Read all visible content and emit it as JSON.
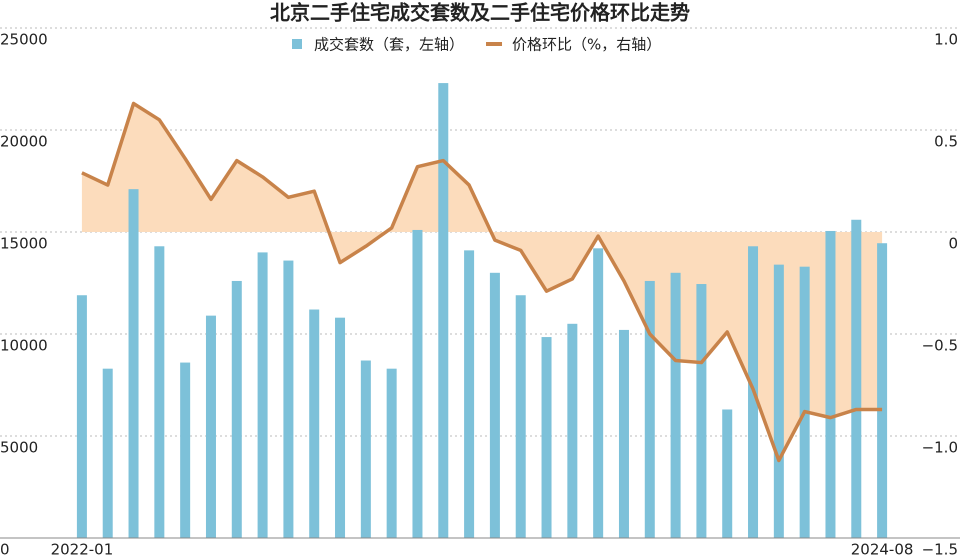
{
  "chart_data": {
    "type": "bar-line",
    "title": "北京二手住宅成交套数及二手住宅价格环比走势",
    "categories": [
      "2022-01",
      null,
      null,
      null,
      null,
      null,
      null,
      null,
      null,
      null,
      null,
      null,
      null,
      null,
      null,
      null,
      null,
      null,
      null,
      null,
      null,
      null,
      null,
      null,
      null,
      null,
      null,
      null,
      null,
      null,
      null,
      "2024-08"
    ],
    "series": [
      {
        "name": "成交套数（套，左轴）",
        "color": "#7dc1d9",
        "type": "bar",
        "values": [
          11900,
          8300,
          17100,
          14300,
          8600,
          10900,
          12600,
          14000,
          13600,
          11200,
          10800,
          8700,
          8300,
          15100,
          22300,
          14100,
          13000,
          11900,
          9850,
          10500,
          14200,
          10200,
          12600,
          13000,
          12450,
          6300,
          14300,
          13400,
          13300,
          15050,
          15600,
          14450
        ]
      },
      {
        "name": "价格环比（%，右轴）",
        "color": "#c8834a",
        "type": "line",
        "axis": "y2",
        "area_color": "#fcdcbc",
        "values": [
          0.29,
          0.23,
          0.63,
          0.55,
          0.36,
          0.16,
          0.35,
          0.27,
          0.17,
          0.2,
          -0.15,
          -0.07,
          0.02,
          0.32,
          0.35,
          0.23,
          -0.04,
          -0.09,
          -0.29,
          -0.23,
          -0.02,
          -0.24,
          -0.5,
          -0.63,
          -0.64,
          -0.49,
          -0.77,
          -1.12,
          -0.88,
          -0.91,
          -0.87,
          -0.87
        ]
      }
    ],
    "ylim": [
      0,
      25000
    ],
    "yticks": [
      0,
      5000,
      10000,
      15000,
      20000,
      25000
    ],
    "y2lim": [
      -1.5,
      1
    ],
    "y2ticks": [
      {
        "value": -1.5,
        "label": "−1.5"
      },
      {
        "value": -1,
        "label": "−1.0"
      },
      {
        "value": -0.5,
        "label": "−0.5"
      },
      0,
      0.5,
      {
        "value": 1,
        "label": "1.0"
      }
    ],
    "grid": true
  }
}
